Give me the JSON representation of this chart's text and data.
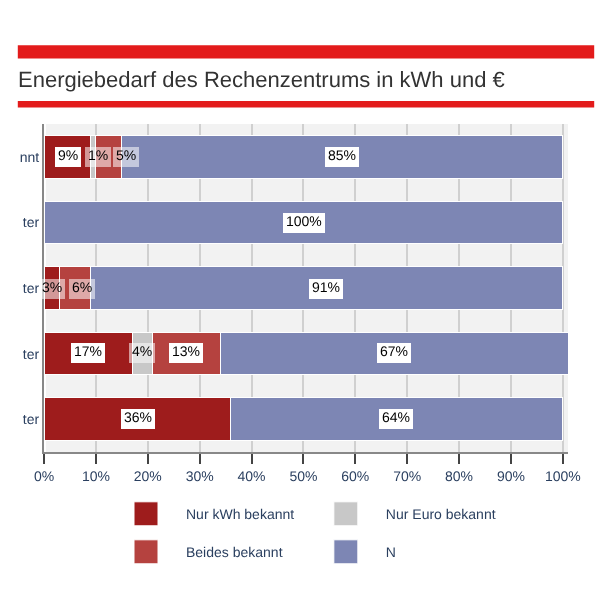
{
  "chart_data": {
    "type": "bar",
    "orientation": "horizontal",
    "stacked": true,
    "title": "Energiebedarf des Rechenzentrums in kWh und €",
    "categories": [
      "nnt",
      "ter",
      "ter",
      "ter",
      "ter"
    ],
    "series": [
      {
        "name": "Nur kWh bekannt",
        "color": "#9e1c1c",
        "values": [
          9,
          null,
          3,
          17,
          36
        ],
        "value_labels": [
          "9%",
          null,
          "3%",
          "17%",
          "36%"
        ]
      },
      {
        "name": "Nur Euro bekannt",
        "color": "#c8c8c8",
        "values": [
          1,
          null,
          null,
          4,
          null
        ],
        "value_labels": [
          "1%",
          null,
          null,
          "4%",
          null
        ]
      },
      {
        "name": "Beides bekannt",
        "color": "#b5423f",
        "values": [
          5,
          null,
          6,
          13,
          null
        ],
        "value_labels": [
          "5%",
          null,
          "6%",
          "13%",
          null
        ]
      },
      {
        "name": "N",
        "color": "#7d86b4",
        "values": [
          85,
          100,
          91,
          67,
          64
        ],
        "value_labels": [
          "85%",
          "100%",
          "91%",
          "67%",
          "64%"
        ]
      }
    ],
    "xlim": [
      0,
      101
    ],
    "xticks": [
      {
        "value": 0,
        "label": "0%"
      },
      {
        "value": 10,
        "label": "10%"
      },
      {
        "value": 20,
        "label": "20%"
      },
      {
        "value": 30,
        "label": "30%"
      },
      {
        "value": 40,
        "label": "40%"
      },
      {
        "value": 50,
        "label": "50%"
      },
      {
        "value": 60,
        "label": "60%"
      },
      {
        "value": 70,
        "label": "70%"
      },
      {
        "value": 80,
        "label": "80%"
      },
      {
        "value": 90,
        "label": "90%"
      },
      {
        "value": 100,
        "label": "100%"
      }
    ],
    "grid": "x",
    "legend": "bottom"
  }
}
